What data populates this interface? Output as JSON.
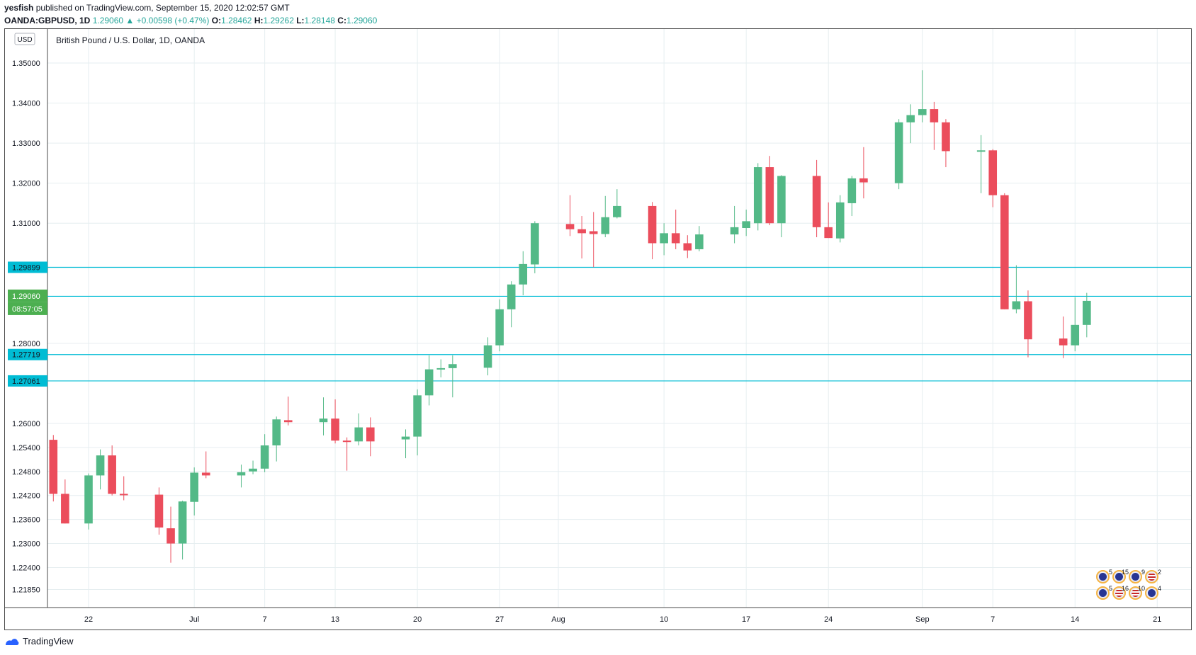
{
  "header": {
    "author": "yesfish",
    "published": " published on TradingView.com, September 15, 2020 12:02:57 GMT",
    "symbol": "OANDA:GBPUSD, 1D",
    "last": "1.29060",
    "change": "▲ +0.00598 (+0.47%)",
    "o_label": "O:",
    "o_val": "1.28462",
    "h_label": "H:",
    "h_val": "1.29262",
    "l_label": "L:",
    "l_val": "1.28148",
    "c_label": "C:",
    "c_val": "1.29060"
  },
  "footer": {
    "brand": "TradingView"
  },
  "colors": {
    "up": "#53b987",
    "down": "#eb4d5c",
    "hline": "#00bcd4",
    "grid": "#e6eef0",
    "last": "#4caf50"
  },
  "chart_data": {
    "type": "candlestick",
    "title": "British Pound / U.S. Dollar, 1D, OANDA",
    "currency_badge": "USD",
    "y_ticks": [
      "1.35000",
      "1.34000",
      "1.33000",
      "1.32000",
      "1.31000",
      "1.28000",
      "1.26000",
      "1.25400",
      "1.24800",
      "1.24200",
      "1.23600",
      "1.23000",
      "1.22400",
      "1.21850"
    ],
    "ylim": [
      1.214,
      1.3585
    ],
    "x_ticks": [
      {
        "label": "22",
        "day": 0
      },
      {
        "label": "Jul",
        "day": 9
      },
      {
        "label": "7",
        "day": 15
      },
      {
        "label": "13",
        "day": 21
      },
      {
        "label": "20",
        "day": 28
      },
      {
        "label": "27",
        "day": 35
      },
      {
        "label": "Aug",
        "day": 40
      },
      {
        "label": "10",
        "day": 49
      },
      {
        "label": "17",
        "day": 56
      },
      {
        "label": "24",
        "day": 63
      },
      {
        "label": "Sep",
        "day": 71
      },
      {
        "label": "7",
        "day": 77
      },
      {
        "label": "14",
        "day": 84
      },
      {
        "label": "21",
        "day": 91
      }
    ],
    "x_range": [
      -3.5,
      94
    ],
    "horizontal_lines": [
      {
        "label": "1.29899",
        "value": 1.29899
      },
      {
        "label": "1.29174",
        "value": 1.29174
      },
      {
        "label": "1.27719",
        "value": 1.27719
      },
      {
        "label": "1.27061",
        "value": 1.27061
      }
    ],
    "last_price": {
      "label": "1.29060",
      "value": 1.2906,
      "countdown": "08:57:05"
    },
    "candles": [
      {
        "d": -3,
        "o": 1.2559,
        "h": 1.2571,
        "l": 1.2405,
        "c": 1.2424
      },
      {
        "d": -2,
        "o": 1.2424,
        "h": 1.246,
        "l": 1.235,
        "c": 1.235
      },
      {
        "d": 0,
        "o": 1.235,
        "h": 1.2475,
        "l": 1.2335,
        "c": 1.247
      },
      {
        "d": 1,
        "o": 1.247,
        "h": 1.2535,
        "l": 1.2435,
        "c": 1.252
      },
      {
        "d": 2,
        "o": 1.252,
        "h": 1.2545,
        "l": 1.242,
        "c": 1.2424
      },
      {
        "d": 3,
        "o": 1.2424,
        "h": 1.2468,
        "l": 1.2408,
        "c": 1.2421
      },
      {
        "d": 6,
        "o": 1.2422,
        "h": 1.244,
        "l": 1.2322,
        "c": 1.234
      },
      {
        "d": 7,
        "o": 1.2338,
        "h": 1.2392,
        "l": 1.2252,
        "c": 1.23
      },
      {
        "d": 8,
        "o": 1.23,
        "h": 1.2407,
        "l": 1.226,
        "c": 1.2405
      },
      {
        "d": 9,
        "o": 1.2404,
        "h": 1.249,
        "l": 1.237,
        "c": 1.2477
      },
      {
        "d": 10,
        "o": 1.2477,
        "h": 1.253,
        "l": 1.2463,
        "c": 1.247
      },
      {
        "d": 13,
        "o": 1.247,
        "h": 1.2497,
        "l": 1.244,
        "c": 1.2478
      },
      {
        "d": 14,
        "o": 1.248,
        "h": 1.2507,
        "l": 1.2473,
        "c": 1.2487
      },
      {
        "d": 15,
        "o": 1.2487,
        "h": 1.2573,
        "l": 1.2478,
        "c": 1.2545
      },
      {
        "d": 16,
        "o": 1.2545,
        "h": 1.2617,
        "l": 1.2505,
        "c": 1.261
      },
      {
        "d": 17,
        "o": 1.2608,
        "h": 1.2667,
        "l": 1.2595,
        "c": 1.2603
      },
      {
        "d": 20,
        "o": 1.2603,
        "h": 1.2665,
        "l": 1.257,
        "c": 1.2612
      },
      {
        "d": 21,
        "o": 1.2612,
        "h": 1.266,
        "l": 1.255,
        "c": 1.2557
      },
      {
        "d": 22,
        "o": 1.2557,
        "h": 1.2565,
        "l": 1.2482,
        "c": 1.2555
      },
      {
        "d": 23,
        "o": 1.2555,
        "h": 1.2625,
        "l": 1.2545,
        "c": 1.259
      },
      {
        "d": 24,
        "o": 1.259,
        "h": 1.2615,
        "l": 1.2518,
        "c": 1.2555
      },
      {
        "d": 27,
        "o": 1.256,
        "h": 1.2585,
        "l": 1.2513,
        "c": 1.2567
      },
      {
        "d": 28,
        "o": 1.2567,
        "h": 1.2685,
        "l": 1.252,
        "c": 1.267
      },
      {
        "d": 29,
        "o": 1.267,
        "h": 1.277,
        "l": 1.2645,
        "c": 1.2735
      },
      {
        "d": 30,
        "o": 1.2735,
        "h": 1.276,
        "l": 1.2715,
        "c": 1.2738
      },
      {
        "d": 31,
        "o": 1.2738,
        "h": 1.277,
        "l": 1.2665,
        "c": 1.2748
      },
      {
        "d": 34,
        "o": 1.2739,
        "h": 1.2815,
        "l": 1.272,
        "c": 1.2795
      },
      {
        "d": 35,
        "o": 1.2795,
        "h": 1.291,
        "l": 1.278,
        "c": 1.2885
      },
      {
        "d": 36,
        "o": 1.2885,
        "h": 1.2955,
        "l": 1.284,
        "c": 1.2947
      },
      {
        "d": 37,
        "o": 1.2947,
        "h": 1.303,
        "l": 1.292,
        "c": 1.2998
      },
      {
        "d": 38,
        "o": 1.2997,
        "h": 1.3105,
        "l": 1.2975,
        "c": 1.31
      },
      {
        "d": 41,
        "o": 1.3098,
        "h": 1.317,
        "l": 1.3068,
        "c": 1.3085
      },
      {
        "d": 42,
        "o": 1.3085,
        "h": 1.3118,
        "l": 1.3012,
        "c": 1.3075
      },
      {
        "d": 43,
        "o": 1.308,
        "h": 1.3128,
        "l": 1.299,
        "c": 1.3073
      },
      {
        "d": 44,
        "o": 1.3073,
        "h": 1.3168,
        "l": 1.3065,
        "c": 1.3115
      },
      {
        "d": 45,
        "o": 1.3115,
        "h": 1.3185,
        "l": 1.3112,
        "c": 1.3143
      },
      {
        "d": 48,
        "o": 1.3143,
        "h": 1.3153,
        "l": 1.301,
        "c": 1.305
      },
      {
        "d": 49,
        "o": 1.305,
        "h": 1.31,
        "l": 1.302,
        "c": 1.3075
      },
      {
        "d": 50,
        "o": 1.3075,
        "h": 1.3134,
        "l": 1.3035,
        "c": 1.305
      },
      {
        "d": 51,
        "o": 1.305,
        "h": 1.307,
        "l": 1.3013,
        "c": 1.3032
      },
      {
        "d": 52,
        "o": 1.3035,
        "h": 1.3093,
        "l": 1.303,
        "c": 1.3072
      },
      {
        "d": 55,
        "o": 1.3072,
        "h": 1.3143,
        "l": 1.305,
        "c": 1.309
      },
      {
        "d": 56,
        "o": 1.3088,
        "h": 1.3134,
        "l": 1.3068,
        "c": 1.3105
      },
      {
        "d": 57,
        "o": 1.31,
        "h": 1.325,
        "l": 1.3082,
        "c": 1.324
      },
      {
        "d": 58,
        "o": 1.324,
        "h": 1.3268,
        "l": 1.3095,
        "c": 1.31
      },
      {
        "d": 59,
        "o": 1.31,
        "h": 1.322,
        "l": 1.3065,
        "c": 1.3218
      },
      {
        "d": 62,
        "o": 1.3218,
        "h": 1.3258,
        "l": 1.3065,
        "c": 1.309
      },
      {
        "d": 63,
        "o": 1.309,
        "h": 1.3152,
        "l": 1.3063,
        "c": 1.3063
      },
      {
        "d": 64,
        "o": 1.3062,
        "h": 1.317,
        "l": 1.3052,
        "c": 1.3152
      },
      {
        "d": 65,
        "o": 1.315,
        "h": 1.3218,
        "l": 1.3118,
        "c": 1.3212
      },
      {
        "d": 66,
        "o": 1.3212,
        "h": 1.329,
        "l": 1.3162,
        "c": 1.3202
      },
      {
        "d": 69,
        "o": 1.32,
        "h": 1.336,
        "l": 1.3185,
        "c": 1.3352
      },
      {
        "d": 70,
        "o": 1.3352,
        "h": 1.3397,
        "l": 1.33,
        "c": 1.337
      },
      {
        "d": 71,
        "o": 1.337,
        "h": 1.3482,
        "l": 1.3352,
        "c": 1.3385
      },
      {
        "d": 72,
        "o": 1.3385,
        "h": 1.3403,
        "l": 1.3283,
        "c": 1.3352
      },
      {
        "d": 73,
        "o": 1.3352,
        "h": 1.336,
        "l": 1.324,
        "c": 1.328
      },
      {
        "d": 76,
        "o": 1.328,
        "h": 1.332,
        "l": 1.3175,
        "c": 1.3282
      },
      {
        "d": 77,
        "o": 1.3282,
        "h": 1.3285,
        "l": 1.314,
        "c": 1.317
      },
      {
        "d": 78,
        "o": 1.317,
        "h": 1.3175,
        "l": 1.2885,
        "c": 1.2885
      },
      {
        "d": 79,
        "o": 1.2885,
        "h": 1.2995,
        "l": 1.2875,
        "c": 1.2905
      },
      {
        "d": 80,
        "o": 1.2905,
        "h": 1.2932,
        "l": 1.2765,
        "c": 1.281
      },
      {
        "d": 83,
        "o": 1.2812,
        "h": 1.2867,
        "l": 1.2763,
        "c": 1.2795
      },
      {
        "d": 84,
        "o": 1.2795,
        "h": 1.2915,
        "l": 1.278,
        "c": 1.2846
      },
      {
        "d": 85,
        "o": 1.2846,
        "h": 1.2926,
        "l": 1.2815,
        "c": 1.2906
      }
    ]
  },
  "events": {
    "rows": [
      [
        {
          "type": "uk",
          "count": "5"
        },
        {
          "type": "uk",
          "count": "15"
        },
        {
          "type": "uk",
          "count": "9"
        },
        {
          "type": "us",
          "count": "2"
        }
      ],
      [
        {
          "type": "uk",
          "count": "5"
        },
        {
          "type": "us",
          "count": "16"
        },
        {
          "type": "us",
          "count": "10"
        },
        {
          "type": "uk",
          "count": "4"
        }
      ]
    ]
  }
}
